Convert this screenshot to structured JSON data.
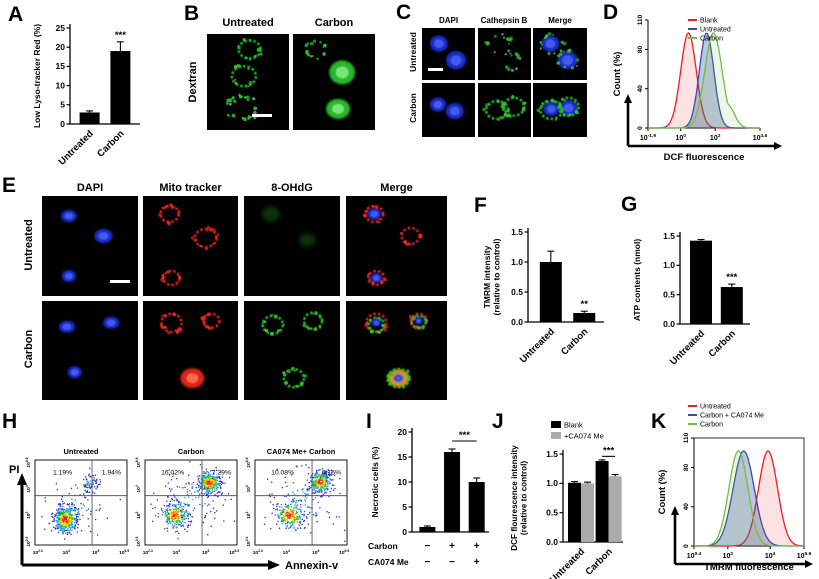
{
  "figure": {
    "panels": {
      "A": {
        "letter": "A"
      },
      "B": {
        "letter": "B",
        "row_label": "Dextran",
        "col_headers": [
          "Untreated",
          "Carbon"
        ]
      },
      "C": {
        "letter": "C",
        "col_headers": [
          "DAPI",
          "Cathepsin B",
          "Merge"
        ],
        "row_labels": [
          "Untreated",
          "Carbon"
        ]
      },
      "D": {
        "letter": "D"
      },
      "E": {
        "letter": "E",
        "col_headers": [
          "DAPI",
          "Mito tracker",
          "8-OHdG",
          "Merge"
        ],
        "row_labels": [
          "Untreated",
          "Carbon"
        ]
      },
      "F": {
        "letter": "F"
      },
      "G": {
        "letter": "G"
      },
      "H": {
        "letter": "H"
      },
      "I": {
        "letter": "I"
      },
      "J": {
        "letter": "J"
      },
      "K": {
        "letter": "K"
      }
    }
  },
  "chart_data": [
    {
      "id": "A",
      "type": "bar",
      "categories": [
        "Untreated",
        "Carbon"
      ],
      "values": [
        3,
        19
      ],
      "errors": [
        0.4,
        2.4
      ],
      "ylabel": "Low Lyso-tracker Red (%)",
      "ylim": [
        0,
        25
      ],
      "yticks": [
        0,
        5,
        10,
        15,
        20,
        25
      ],
      "significance": "***"
    },
    {
      "id": "D",
      "type": "line",
      "subtype": "flow_histogram",
      "xlabel": "DCF fluorescence",
      "ylabel": "Count (%)",
      "ylim": [
        0,
        110
      ],
      "yticks": [
        0,
        40,
        80,
        110
      ],
      "xticks": [
        "10^-1.9",
        "10^0",
        "10^2",
        "10^4.6"
      ],
      "xlim_log": [
        -1.9,
        4.6
      ],
      "series": [
        {
          "name": "Blank",
          "color": "#ed1c24",
          "peak_log": 0.45,
          "sd_log": 0.45
        },
        {
          "name": "Untreated",
          "color": "#3950a2",
          "peak_log": 1.5,
          "sd_log": 0.42
        },
        {
          "name": "Carbon",
          "color": "#70bf44",
          "peak_log": 1.9,
          "sd_log": 0.5,
          "shoulder_log": 2.7
        }
      ]
    },
    {
      "id": "F",
      "type": "bar",
      "categories": [
        "Untreated",
        "Carbon"
      ],
      "values": [
        1.0,
        0.15
      ],
      "errors": [
        0.18,
        0.03
      ],
      "ylabel_lines": [
        "TMRM intensity",
        "(relative to control)"
      ],
      "ylim": [
        0,
        1.5
      ],
      "yticks": [
        0,
        0.5,
        1,
        1.5
      ],
      "significance": "**"
    },
    {
      "id": "G",
      "type": "bar",
      "categories": [
        "Untreated",
        "Carbon"
      ],
      "values": [
        1.42,
        0.63
      ],
      "errors": [
        0.02,
        0.05
      ],
      "ylabel": "ATP contents (nmol)",
      "ylim": [
        0,
        1.5
      ],
      "yticks": [
        0,
        0.5,
        1,
        1.5
      ],
      "significance": "***"
    },
    {
      "id": "H",
      "type": "scatter",
      "subtype": "flow_quadrant",
      "xlabel": "Annexin-v",
      "ylabel": "PI",
      "xticks": [
        "10^2.3",
        "10^4",
        "10^6",
        "10^6.5"
      ],
      "yticks": [
        "10^0.3",
        "10^2",
        "10^4",
        "10^6.6"
      ],
      "plots": [
        {
          "title": "Untreated",
          "q_upper_left": "1.19%",
          "q_upper_right": "1.94%"
        },
        {
          "title": "Carbon",
          "q_upper_left": "16.02%",
          "q_upper_right": "7.29%"
        },
        {
          "title": "CA074 Me+ Carbon",
          "q_upper_left": "10.08%",
          "q_upper_right": "6.15%"
        }
      ]
    },
    {
      "id": "I",
      "type": "bar",
      "values": [
        1,
        16,
        10
      ],
      "errors": [
        0.2,
        0.6,
        0.8
      ],
      "ylabel": "Necrotic cells (%)",
      "ylim": [
        0,
        20
      ],
      "yticks": [
        0,
        5,
        10,
        15,
        20
      ],
      "significance": "***",
      "sig_between": [
        1,
        2
      ],
      "condition_rows": [
        {
          "label": "Carbon",
          "signs": [
            "−",
            "+",
            "+"
          ]
        },
        {
          "label": "CA074 Me",
          "signs": [
            "−",
            "−",
            "+"
          ]
        }
      ]
    },
    {
      "id": "J",
      "type": "bar",
      "grouped": true,
      "categories": [
        "Untreated",
        "Carbon"
      ],
      "series": [
        {
          "name": "Blank",
          "color": "#000000",
          "values": [
            1.01,
            1.38
          ],
          "errors": [
            0.02,
            0.02
          ]
        },
        {
          "name": "+CA074 Me",
          "color": "#ababab",
          "values": [
            1.0,
            1.12
          ],
          "errors": [
            0.02,
            0.03
          ]
        }
      ],
      "ylabel_lines": [
        "DCF flourescence intensity",
        "(relative to control)"
      ],
      "ylim": [
        0,
        1.5
      ],
      "yticks": [
        0,
        0.5,
        1,
        1.5
      ],
      "significance": "***",
      "sig_on": "Carbon"
    },
    {
      "id": "K",
      "type": "line",
      "subtype": "flow_histogram",
      "xlabel": "TMRM fluorescence",
      "ylabel": "Count (%)",
      "ylim": [
        0,
        110
      ],
      "yticks": [
        0,
        40,
        80,
        110
      ],
      "xticks": [
        "10^0.4",
        "10^2",
        "10^4",
        "10^5.6"
      ],
      "xlim_log": [
        0.4,
        5.6
      ],
      "series": [
        {
          "name": "Untreated",
          "color": "#ed1c24",
          "peak_log": 3.9,
          "sd_log": 0.45
        },
        {
          "name": "Carbon + CA074 Me",
          "color": "#3950a2",
          "peak_log": 2.75,
          "sd_log": 0.5
        },
        {
          "name": "Carbon",
          "color": "#70bf44",
          "peak_log": 2.5,
          "sd_log": 0.45
        }
      ]
    }
  ]
}
